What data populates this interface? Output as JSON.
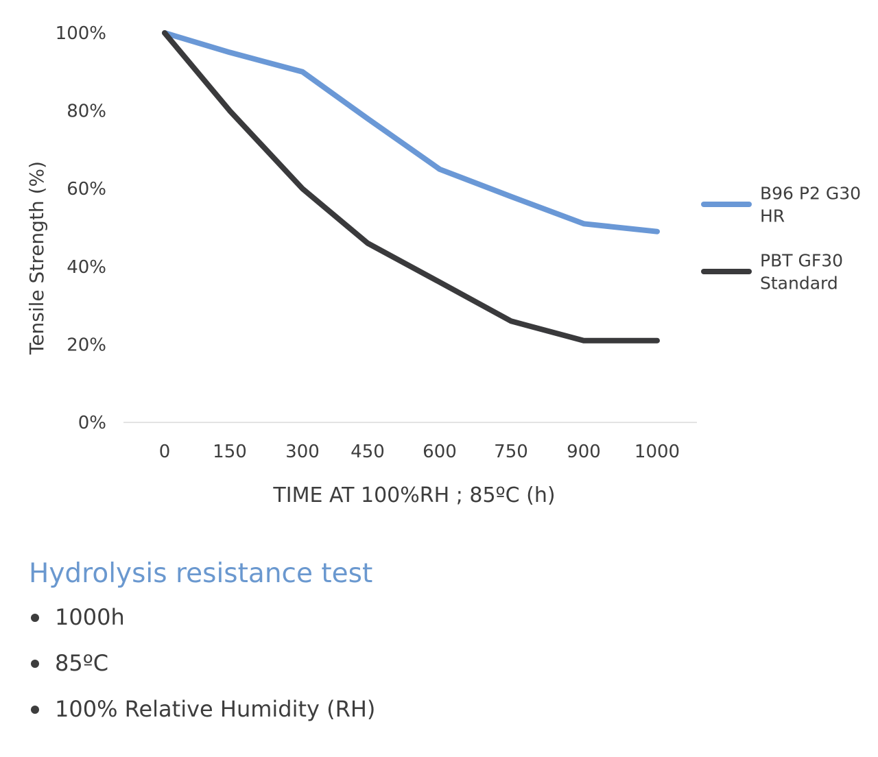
{
  "chart_data": {
    "type": "line",
    "categories": [
      "0",
      "150",
      "300",
      "450",
      "600",
      "750",
      "900",
      "1000"
    ],
    "ylabel": "Tensile Strength (%)",
    "xlabel": "TIME AT 100%RH ; 85ºC (h)",
    "ylim": [
      0,
      100
    ],
    "yticks": [
      "0%",
      "20%",
      "40%",
      "60%",
      "80%",
      "100%"
    ],
    "grid": false,
    "legend_position": "right",
    "series": [
      {
        "name": "B96 P2 G30 HR",
        "name_lines": [
          "B96 P2 G30",
          "HR"
        ],
        "color": "#6a98d6",
        "values": [
          100,
          95,
          90,
          78,
          65,
          58,
          51,
          49
        ]
      },
      {
        "name": "PBT GF30 Standard",
        "name_lines": [
          "PBT GF30",
          "Standard"
        ],
        "color": "#3a3a3c",
        "values": [
          100,
          80,
          60,
          46,
          36,
          26,
          21,
          21
        ]
      }
    ]
  },
  "section": {
    "title": "Hydrolysis resistance test",
    "color": "#6a98cf",
    "bullets": [
      "1000h",
      "85ºC",
      "100% Relative Humidity (RH)"
    ]
  }
}
